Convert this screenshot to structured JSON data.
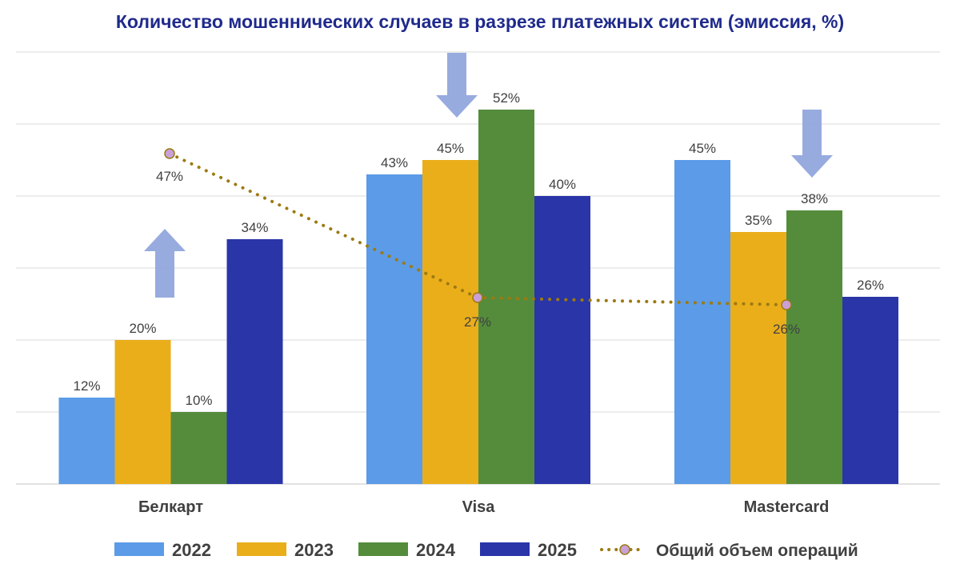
{
  "colors": {
    "title": "#1F2A8C",
    "s2022": "#5B9BE8",
    "s2023": "#EAAE1B",
    "s2024": "#548C3C",
    "s2025": "#2A35A8",
    "line": "#9C7A10",
    "marker": "#C9A0D8",
    "arrow": "#8DA2DC",
    "grid": "#D9D9D9",
    "text": "#404040"
  },
  "chart_data": {
    "type": "bar",
    "title": "Количество мошеннических случаев в разрезе платежных систем (эмиссия, %)",
    "categories": [
      "Белкарт",
      "Visa",
      "Mastercard"
    ],
    "ylim": [
      0,
      60
    ],
    "grid": true,
    "legend_position": "bottom",
    "series": [
      {
        "name": "2022",
        "type": "bar",
        "values": [
          12,
          43,
          45
        ],
        "labels": [
          "12%",
          "43%",
          "45%"
        ]
      },
      {
        "name": "2023",
        "type": "bar",
        "values": [
          20,
          45,
          35
        ],
        "labels": [
          "20%",
          "45%",
          "35%"
        ]
      },
      {
        "name": "2024",
        "type": "bar",
        "values": [
          10,
          52,
          38
        ],
        "labels": [
          "10%",
          "52%",
          "38%"
        ]
      },
      {
        "name": "2025",
        "type": "bar",
        "values": [
          34,
          40,
          26
        ],
        "labels": [
          "34%",
          "40%",
          "26%"
        ]
      },
      {
        "name": "Общий объем операций",
        "type": "line",
        "style": "dotted",
        "values": [
          47,
          27,
          26
        ],
        "labels": [
          "47%",
          "27%",
          "26%"
        ]
      }
    ],
    "trend_arrows": [
      {
        "category": "Белкарт",
        "direction": "up"
      },
      {
        "category": "Visa",
        "direction": "down"
      },
      {
        "category": "Mastercard",
        "direction": "down"
      }
    ]
  }
}
